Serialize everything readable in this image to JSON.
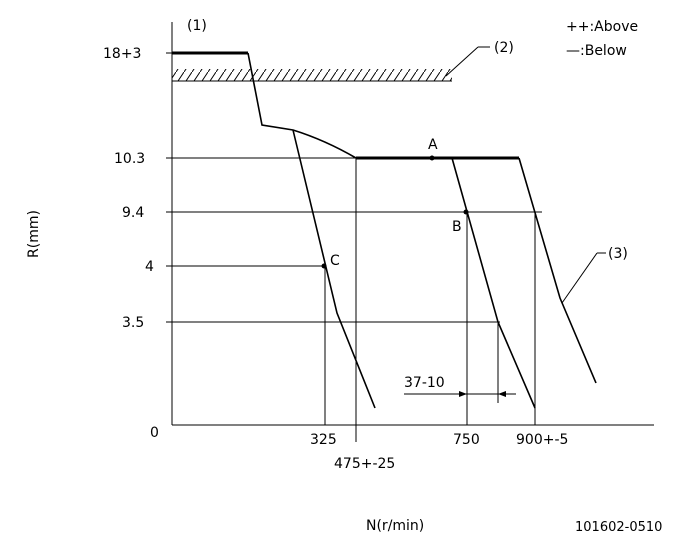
{
  "diagram": {
    "marker_1": "(1)",
    "marker_2": "(2)",
    "marker_3": "(3)",
    "legend": {
      "above": "++:Above",
      "below": "—:Below"
    },
    "y_axis": {
      "label": "R(mm)",
      "ticks": [
        "18+3",
        "10.3",
        "9.4",
        "4",
        "3.5",
        "0"
      ]
    },
    "x_axis": {
      "label": "N(r/min)",
      "ticks": [
        "325",
        "475+-25",
        "750",
        "900+-5"
      ]
    },
    "points": {
      "a": "A",
      "b": "B",
      "c": "C"
    },
    "dimension": "37-10",
    "code": "101602-0510"
  }
}
